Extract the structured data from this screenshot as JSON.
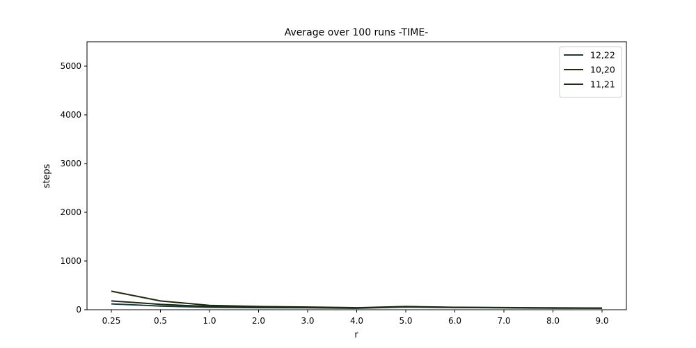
{
  "chart_data": {
    "type": "line",
    "title": "Average over 100 runs -TIME-",
    "xlabel": "r",
    "ylabel": "steps",
    "categories": [
      "0.25",
      "0.5",
      "1.0",
      "2.0",
      "3.0",
      "4.0",
      "5.0",
      "6.0",
      "7.0",
      "8.0",
      "9.0"
    ],
    "ylim": [
      0,
      5500
    ],
    "yticks": [
      "0",
      "1000",
      "2000",
      "3000",
      "4000",
      "5000"
    ],
    "grid": false,
    "legend_position": "top-right",
    "series": [
      {
        "name": "12,22",
        "color": "#1f3b3b",
        "values": [
          120,
          75,
          50,
          42,
          38,
          30,
          55,
          45,
          38,
          32,
          30
        ]
      },
      {
        "name": "10,20",
        "color": "#1f2a10",
        "values": [
          380,
          180,
          90,
          65,
          55,
          42,
          65,
          50,
          45,
          38,
          35
        ]
      },
      {
        "name": "11,21",
        "color": "#1c2a1a",
        "values": [
          180,
          110,
          65,
          52,
          45,
          35,
          60,
          48,
          42,
          35,
          32
        ]
      }
    ]
  }
}
